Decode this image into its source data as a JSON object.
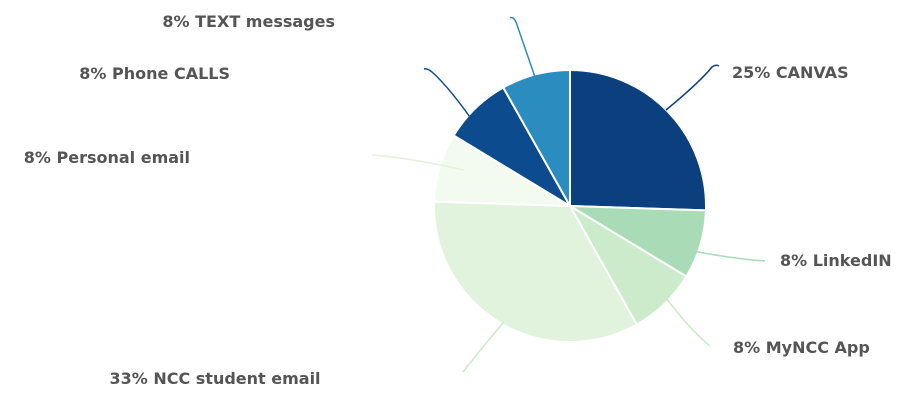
{
  "chart_data": {
    "type": "pie",
    "title": "",
    "legend": "none",
    "slices": [
      {
        "name": "CANVAS",
        "value": 25,
        "label": "25% CANVAS",
        "color": "#0b3f7e"
      },
      {
        "name": "LinkedIN",
        "value": 8,
        "label": "8% LinkedIN",
        "color": "#a9dcb6"
      },
      {
        "name": "MyNCC App",
        "value": 8,
        "label": "8% MyNCC App",
        "color": "#ccebcb"
      },
      {
        "name": "NCC student email",
        "value": 33,
        "label": "33% NCC student email",
        "color": "#e1f3dd"
      },
      {
        "name": "Personal email",
        "value": 8,
        "label": "8% Personal email",
        "color": "#f3faf0"
      },
      {
        "name": "Phone CALLS",
        "value": 8,
        "label": "8% Phone CALLS",
        "color": "#0c4b8e"
      },
      {
        "name": "TEXT messages",
        "value": 8,
        "label": "8% TEXT messages",
        "color": "#2b8cbf"
      }
    ]
  }
}
